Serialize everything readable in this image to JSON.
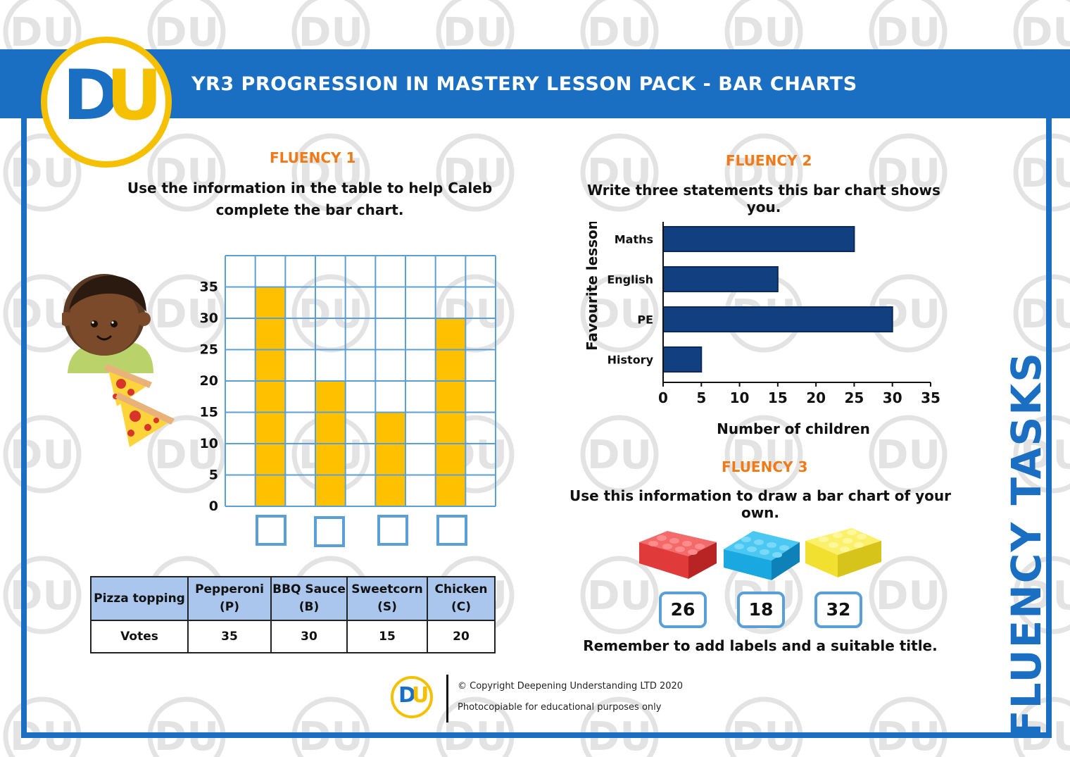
{
  "header": {
    "title": "YR3 PROGRESSION IN MASTERY LESSON PACK - BAR CHARTS",
    "logo_text": [
      "D",
      "U"
    ]
  },
  "side_title": "FLUENCY TASKS",
  "watermark": {
    "logo": "DU",
    "text": "© Deepening Understanding"
  },
  "colors": {
    "brand_blue": "#1a6fc2",
    "brand_yellow": "#f5c000",
    "section_orange": "#f07a18",
    "bar_yellow": "#ffc000",
    "bar_navy": "#123f80",
    "grid_blue": "#5a9fd6",
    "table_header": "#aac6ec"
  },
  "fluency1": {
    "title": "FLUENCY 1",
    "instruction_line1": "Use the information in the table to help Caleb",
    "instruction_line2": "complete the bar chart.",
    "illustration": "child-eating-pizza"
  },
  "table": {
    "header_label": "Pizza topping",
    "columns": [
      {
        "name": "Pepperoni",
        "code": "(P)"
      },
      {
        "name": "BBQ Sauce",
        "code": "(B)"
      },
      {
        "name": "Sweetcorn",
        "code": "(S)"
      },
      {
        "name": "Chicken",
        "code": "(C)"
      }
    ],
    "row_label": "Votes",
    "votes": [
      "35",
      "30",
      "15",
      "20"
    ]
  },
  "fluency2": {
    "title": "FLUENCY 2",
    "instruction": "Write three statements this bar chart shows you."
  },
  "fluency3": {
    "title": "FLUENCY 3",
    "instruction": "Use this information to draw a bar chart of your own.",
    "bricks": [
      {
        "color": "red",
        "value": "26"
      },
      {
        "color": "blue",
        "value": "18"
      },
      {
        "color": "yellow",
        "value": "32"
      }
    ],
    "reminder": "Remember to add labels and a suitable title."
  },
  "footer": {
    "copyright": "© Copyright Deepening Understanding LTD 2020",
    "note": "Photocopiable for educational purposes only"
  },
  "chart_data": [
    {
      "type": "bar",
      "orientation": "vertical",
      "categories": [
        "",
        "",
        "",
        ""
      ],
      "values": [
        35,
        20,
        15,
        30
      ],
      "ylim": [
        0,
        40
      ],
      "yticks": [
        "0",
        "5",
        "10",
        "15",
        "20",
        "25",
        "30",
        "35"
      ],
      "grid": true,
      "xlabel": "",
      "ylabel": "",
      "title": ""
    },
    {
      "type": "bar",
      "orientation": "horizontal",
      "categories": [
        "Maths",
        "English",
        "PE",
        "History"
      ],
      "values": [
        25,
        15,
        30,
        5
      ],
      "xlim": [
        0,
        35
      ],
      "xticks": [
        "0",
        "5",
        "10",
        "15",
        "20",
        "25",
        "30",
        "35"
      ],
      "xlabel": "Number of children",
      "ylabel": "Favourite lesson",
      "grid": false,
      "title": ""
    }
  ]
}
